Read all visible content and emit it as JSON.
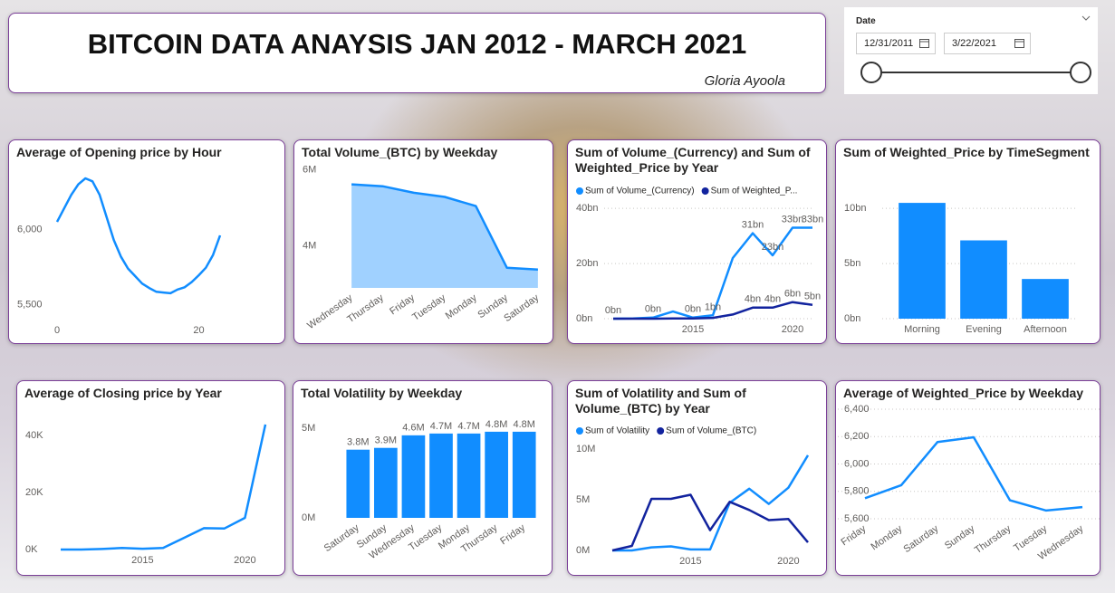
{
  "header": {
    "title": "BITCOIN DATA ANAYSIS JAN 2012 - MARCH 2021",
    "author": "Gloria Ayoola"
  },
  "slicer": {
    "label": "Date",
    "start": "12/31/2011",
    "end": "3/22/2021"
  },
  "chart_data": [
    {
      "type": "line",
      "title": "Average of Opening price by Hour",
      "color": "#118dff",
      "grid": false,
      "x": [
        0,
        1,
        2,
        3,
        4,
        5,
        6,
        7,
        8,
        9,
        10,
        11,
        12,
        13,
        14,
        15,
        16,
        17,
        18,
        19,
        20,
        21,
        22,
        23
      ],
      "values": [
        6050,
        6140,
        6230,
        6300,
        6340,
        6320,
        6230,
        6080,
        5930,
        5820,
        5740,
        5690,
        5640,
        5610,
        5585,
        5580,
        5575,
        5600,
        5615,
        5650,
        5695,
        5745,
        5830,
        5960
      ],
      "xlim": [
        0,
        23
      ],
      "xticks": [
        0,
        20
      ],
      "ylim": [
        5400,
        6400
      ],
      "yticks": [
        {
          "value": 5500,
          "label": "5,500"
        },
        {
          "value": 6000,
          "label": "6,000"
        }
      ]
    },
    {
      "type": "area",
      "title": "Total Volume_(BTC) by Weekday",
      "color": "#118dff",
      "grid": false,
      "categories": [
        "Wednesday",
        "Thursday",
        "Friday",
        "Tuesday",
        "Monday",
        "Sunday",
        "Saturday"
      ],
      "values": [
        5620000,
        5570000,
        5400000,
        5290000,
        5050000,
        3430000,
        3380000
      ],
      "ylim": [
        2900000,
        6300000
      ],
      "yticks": [
        {
          "value": 4000000,
          "label": "4M"
        },
        {
          "value": 6000000,
          "label": "6M"
        }
      ]
    },
    {
      "type": "line",
      "title": "Sum of Volume_(Currency) and Sum of Weighted_Price by Year",
      "grid": true,
      "x": [
        2011,
        2012,
        2013,
        2014,
        2015,
        2016,
        2017,
        2018,
        2019,
        2020,
        2021
      ],
      "series": [
        {
          "name": "Sum of Volume_(Currency)",
          "color": "#118dff",
          "values": [
            0,
            100000000.0,
            400000000.0,
            2600000000.0,
            400000000.0,
            1200000000.0,
            22000000000.0,
            31000000000.0,
            23000000000.0,
            33000000000.0,
            33000000000.0
          ],
          "value_labels": [
            "0bn",
            null,
            "0bn",
            null,
            "0bn",
            "1bn",
            null,
            "31bn",
            "23bn",
            "33bn",
            "33bn"
          ]
        },
        {
          "name": "Sum of Weighted_P...",
          "color": "#12239e",
          "values": [
            0,
            0,
            10000000.0,
            50000000.0,
            100000000.0,
            300000000.0,
            1500000000.0,
            4000000000.0,
            4000000000.0,
            6000000000.0,
            5000000000.0
          ],
          "value_labels": [
            null,
            null,
            null,
            null,
            null,
            null,
            null,
            "4bn",
            "4bn",
            "6bn",
            "5bn"
          ]
        }
      ],
      "xlim": [
        2011,
        2021
      ],
      "xticks": [
        2015,
        2020
      ],
      "ylim": [
        0,
        44000000000.0
      ],
      "yticks": [
        {
          "value": 0,
          "label": "0bn"
        },
        {
          "value": 20000000000.0,
          "label": "20bn"
        },
        {
          "value": 40000000000.0,
          "label": "40bn"
        }
      ]
    },
    {
      "type": "bar",
      "title": "Sum of Weighted_Price by TimeSegment",
      "color": "#118dff",
      "grid": true,
      "categories": [
        "Morning",
        "Evening",
        "Afternoon"
      ],
      "values": [
        10500000000.0,
        7100000000.0,
        3600000000.0
      ],
      "ylim": [
        0,
        11000000000.0
      ],
      "yticks": [
        {
          "value": 0,
          "label": "0bn"
        },
        {
          "value": 5000000000.0,
          "label": "5bn"
        },
        {
          "value": 10000000000.0,
          "label": "10bn"
        }
      ]
    },
    {
      "type": "line",
      "title": "Average of Closing price by Year",
      "color": "#118dff",
      "grid": false,
      "x": [
        2011,
        2012,
        2013,
        2014,
        2015,
        2016,
        2017,
        2018,
        2019,
        2020,
        2021
      ],
      "values": [
        5,
        8,
        200,
        530,
        270,
        570,
        4000,
        7500,
        7400,
        11100,
        43800
      ],
      "xlim": [
        2011,
        2021
      ],
      "xticks": [
        2015,
        2020
      ],
      "ylim": [
        0,
        46000
      ],
      "yticks": [
        {
          "value": 0,
          "label": "0K"
        },
        {
          "value": 20000,
          "label": "20K"
        },
        {
          "value": 40000,
          "label": "40K"
        }
      ]
    },
    {
      "type": "bar",
      "title": "Total Volatility by Weekday",
      "color": "#118dff",
      "grid": false,
      "categories": [
        "Saturday",
        "Sunday",
        "Wednesday",
        "Tuesday",
        "Monday",
        "Thursday",
        "Friday"
      ],
      "values": [
        3800000,
        3900000,
        4600000,
        4700000,
        4700000,
        4800000,
        4800000
      ],
      "value_labels": [
        "3.8M",
        "3.9M",
        "4.6M",
        "4.7M",
        "4.7M",
        "4.8M",
        "4.8M"
      ],
      "ylim": [
        0,
        5500000
      ],
      "yticks": [
        {
          "value": 0,
          "label": "0M"
        },
        {
          "value": 5000000,
          "label": "5M"
        }
      ]
    },
    {
      "type": "line",
      "title": "Sum of Volatility and Sum of Volume_(BTC) by Year",
      "grid": false,
      "x": [
        2011,
        2012,
        2013,
        2014,
        2015,
        2016,
        2017,
        2018,
        2019,
        2020,
        2021
      ],
      "series": [
        {
          "name": "Sum of Volatility",
          "color": "#118dff",
          "values": [
            0,
            0,
            300000,
            400000,
            100000,
            100000,
            4700000,
            6100000,
            4600000,
            6200000,
            9400000
          ]
        },
        {
          "name": "Sum of Volume_(BTC)",
          "color": "#12239e",
          "values": [
            0,
            450000,
            5100000,
            5100000,
            5500000,
            2000000,
            4800000,
            4000000,
            3000000,
            3100000,
            800000
          ]
        }
      ],
      "xlim": [
        2011,
        2021
      ],
      "xticks": [
        2015,
        2020
      ],
      "ylim": [
        0,
        11000000
      ],
      "yticks": [
        {
          "value": 0,
          "label": "0M"
        },
        {
          "value": 5000000,
          "label": "5M"
        },
        {
          "value": 10000000,
          "label": "10M"
        }
      ]
    },
    {
      "type": "line",
      "title": "Average of Weighted_Price by Weekday",
      "color": "#118dff",
      "grid": true,
      "categories": [
        "Friday",
        "Monday",
        "Saturday",
        "Sunday",
        "Thursday",
        "Tuesday",
        "Wednesday"
      ],
      "values": [
        5750,
        5845,
        6160,
        6195,
        5735,
        5660,
        5685
      ],
      "ylim": [
        5600,
        6400
      ],
      "yticks": [
        {
          "value": 5600,
          "label": "5,600"
        },
        {
          "value": 5800,
          "label": "5,800"
        },
        {
          "value": 6000,
          "label": "6,000"
        },
        {
          "value": 6200,
          "label": "6,200"
        },
        {
          "value": 6400,
          "label": "6,400"
        }
      ]
    }
  ]
}
